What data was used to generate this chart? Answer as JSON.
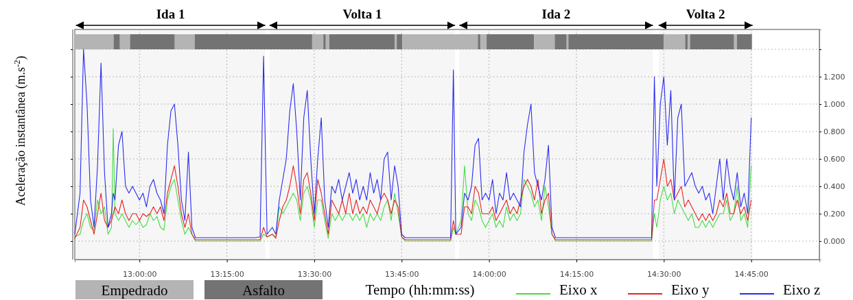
{
  "chart_data": {
    "type": "line",
    "xlabel": "Tempo (hh:mm:ss)",
    "ylabel": "Aceleração instantânea (m.s$^{-2}$)",
    "annotations": [
      "Empedrado",
      "Asfalto"
    ],
    "xlim": [
      12.815,
      14.945
    ],
    "ylim": [
      -0.135,
      1.545
    ],
    "xticks": [
      {
        "value": 13,
        "label": "13:00:00"
      },
      {
        "value": 13.25,
        "label": "13:15:00"
      },
      {
        "value": 13.5,
        "label": "13:30:00"
      },
      {
        "value": 13.75,
        "label": "13:45:00"
      },
      {
        "value": 14,
        "label": "14:00:00"
      },
      {
        "value": 14.25,
        "label": "14:15:00"
      },
      {
        "value": 14.5,
        "label": "14:30:00"
      },
      {
        "value": 14.75,
        "label": "14:45:00"
      }
    ],
    "yticks": [
      {
        "value": 0,
        "label": "0.000"
      },
      {
        "value": 0.2,
        "label": "0.200"
      },
      {
        "value": 0.4,
        "label": "0.400"
      },
      {
        "value": 0.6,
        "label": "0.600"
      },
      {
        "value": 0.8,
        "label": "0.800"
      },
      {
        "value": 1.0,
        "label": "1.000"
      },
      {
        "value": 1.2,
        "label": "1.200"
      },
      {
        "value": 1.4,
        "label": null
      }
    ],
    "grid": true,
    "legend": "bottom",
    "bands": [
      {
        "axis": "x",
        "from": 12.818,
        "to": 13.36,
        "label": "Ida 1"
      },
      {
        "axis": "x",
        "from": 13.372,
        "to": 13.903,
        "label": "Volta 1"
      },
      {
        "axis": "x",
        "from": 13.915,
        "to": 14.469,
        "label": "Ida 2"
      },
      {
        "axis": "x",
        "from": 14.485,
        "to": 14.754,
        "label": "Volta 2"
      },
      {
        "axis": "x",
        "from": 12.815,
        "to": 12.926,
        "color": "#b4b4b4"
      },
      {
        "axis": "x",
        "from": 12.926,
        "to": 12.944,
        "color": "#737373"
      },
      {
        "axis": "x",
        "from": 12.944,
        "to": 12.973,
        "color": "#b4b4b4"
      },
      {
        "axis": "x",
        "from": 12.973,
        "to": 13.101,
        "color": "#737373"
      },
      {
        "axis": "x",
        "from": 13.101,
        "to": 13.158,
        "color": "#b4b4b4"
      },
      {
        "axis": "x",
        "from": 13.158,
        "to": 13.494,
        "color": "#737373"
      },
      {
        "axis": "x",
        "from": 13.494,
        "to": 13.526,
        "color": "#b4b4b4"
      },
      {
        "axis": "x",
        "from": 13.526,
        "to": 13.533,
        "color": "#737373"
      },
      {
        "axis": "x",
        "from": 13.533,
        "to": 13.543,
        "color": "#b4b4b4"
      },
      {
        "axis": "x",
        "from": 13.543,
        "to": 13.73,
        "color": "#737373"
      },
      {
        "axis": "x",
        "from": 13.73,
        "to": 13.736,
        "color": "#b4b4b4"
      },
      {
        "axis": "x",
        "from": 13.736,
        "to": 13.752,
        "color": "#737373"
      },
      {
        "axis": "x",
        "from": 13.752,
        "to": 13.968,
        "color": "#b4b4b4"
      },
      {
        "axis": "x",
        "from": 13.968,
        "to": 13.975,
        "color": "#737373"
      },
      {
        "axis": "x",
        "from": 13.975,
        "to": 13.993,
        "color": "#b4b4b4"
      },
      {
        "axis": "x",
        "from": 13.993,
        "to": 14.129,
        "color": "#737373"
      },
      {
        "axis": "x",
        "from": 14.129,
        "to": 14.188,
        "color": "#b4b4b4"
      },
      {
        "axis": "x",
        "from": 14.188,
        "to": 14.222,
        "color": "#737373"
      },
      {
        "axis": "x",
        "from": 14.222,
        "to": 14.227,
        "color": "#b4b4b4"
      },
      {
        "axis": "x",
        "from": 14.227,
        "to": 14.5,
        "color": "#737373"
      },
      {
        "axis": "x",
        "from": 14.5,
        "to": 14.561,
        "color": "#b4b4b4"
      },
      {
        "axis": "x",
        "from": 14.561,
        "to": 14.568,
        "color": "#737373"
      },
      {
        "axis": "x",
        "from": 14.568,
        "to": 14.575,
        "color": "#b4b4b4"
      },
      {
        "axis": "x",
        "from": 14.575,
        "to": 14.701,
        "color": "#737373"
      },
      {
        "axis": "x",
        "from": 14.701,
        "to": 14.709,
        "color": "#b4b4b4"
      },
      {
        "axis": "x",
        "from": 14.709,
        "to": 14.752,
        "color": "#737373"
      }
    ],
    "x": [
      12.815,
      12.83,
      12.84,
      12.85,
      12.86,
      12.87,
      12.88,
      12.89,
      12.9,
      12.91,
      12.92,
      12.925,
      12.93,
      12.94,
      12.95,
      12.96,
      12.97,
      12.98,
      12.99,
      13.0,
      13.01,
      13.02,
      13.03,
      13.04,
      13.05,
      13.06,
      13.07,
      13.08,
      13.09,
      13.1,
      13.11,
      13.12,
      13.13,
      13.14,
      13.15,
      13.16,
      13.2,
      13.25,
      13.3,
      13.33,
      13.345,
      13.355,
      13.365,
      13.38,
      13.39,
      13.4,
      13.41,
      13.42,
      13.43,
      13.44,
      13.45,
      13.46,
      13.47,
      13.48,
      13.49,
      13.5,
      13.51,
      13.52,
      13.53,
      13.54,
      13.55,
      13.56,
      13.57,
      13.58,
      13.59,
      13.6,
      13.61,
      13.62,
      13.63,
      13.64,
      13.65,
      13.66,
      13.67,
      13.68,
      13.69,
      13.7,
      13.71,
      13.72,
      13.73,
      13.74,
      13.75,
      13.76,
      13.8,
      13.85,
      13.89,
      13.898,
      13.905,
      13.92,
      13.93,
      13.94,
      13.95,
      13.96,
      13.97,
      13.98,
      13.99,
      14.0,
      14.01,
      14.02,
      14.03,
      14.04,
      14.05,
      14.06,
      14.07,
      14.08,
      14.09,
      14.1,
      14.11,
      14.12,
      14.13,
      14.14,
      14.15,
      14.16,
      14.17,
      14.18,
      14.19,
      14.25,
      14.35,
      14.45,
      14.465,
      14.473,
      14.48,
      14.49,
      14.5,
      14.51,
      14.52,
      14.53,
      14.54,
      14.55,
      14.56,
      14.57,
      14.58,
      14.59,
      14.6,
      14.61,
      14.62,
      14.63,
      14.64,
      14.65,
      14.66,
      14.67,
      14.68,
      14.69,
      14.7,
      14.71,
      14.72,
      14.73,
      14.74,
      14.75
    ],
    "series": [
      {
        "name": "Eixo x",
        "color": "#44dd44",
        "values": [
          0.03,
          0.05,
          0.15,
          0.2,
          0.1,
          0.08,
          0.3,
          0.2,
          0.25,
          0.05,
          0.1,
          0.82,
          0.2,
          0.15,
          0.2,
          0.15,
          0.1,
          0.15,
          0.12,
          0.15,
          0.1,
          0.12,
          0.2,
          0.15,
          0.18,
          0.1,
          0.08,
          0.3,
          0.4,
          0.45,
          0.3,
          0.15,
          0.05,
          0.1,
          0.05,
          0,
          0,
          0,
          0,
          0,
          0,
          0.05,
          0.03,
          0.05,
          0.03,
          0.25,
          0.2,
          0.25,
          0.3,
          0.35,
          0.3,
          0.15,
          0.35,
          0.4,
          0.3,
          0.1,
          0.3,
          0.3,
          0.15,
          0.02,
          0.2,
          0.15,
          0.2,
          0.15,
          0.2,
          0.2,
          0.15,
          0.2,
          0.15,
          0.2,
          0.1,
          0.2,
          0.15,
          0.2,
          0.15,
          0.25,
          0.3,
          0.15,
          0.35,
          0.2,
          0.03,
          0,
          0,
          0,
          0,
          0.1,
          0.05,
          0.15,
          0.55,
          0.2,
          0.15,
          0.3,
          0.25,
          0.15,
          0.1,
          0.15,
          0.2,
          0.1,
          0.15,
          0.1,
          0.25,
          0.15,
          0.2,
          0.15,
          0.2,
          0.45,
          0.4,
          0.35,
          0.25,
          0.3,
          0.15,
          0.4,
          0.25,
          0.05,
          0,
          0,
          0,
          0,
          0,
          0.2,
          0.1,
          0.3,
          0.4,
          0.3,
          0.35,
          0.2,
          0.3,
          0.25,
          0.2,
          0.15,
          0.2,
          0.1,
          0.1,
          0.15,
          0.1,
          0.15,
          0.1,
          0.15,
          0.2,
          0.2,
          0.3,
          0.15,
          0.2,
          0.4,
          0.15,
          0.2,
          0.1,
          0.55
        ]
      },
      {
        "name": "Eixo y",
        "color": "#e82020",
        "values": [
          0.02,
          0.1,
          0.3,
          0.25,
          0.15,
          0.05,
          0.2,
          0.35,
          0.15,
          0.1,
          0.15,
          0.2,
          0.25,
          0.2,
          0.3,
          0.2,
          0.15,
          0.2,
          0.2,
          0.15,
          0.2,
          0.18,
          0.2,
          0.25,
          0.2,
          0.25,
          0.15,
          0.35,
          0.45,
          0.55,
          0.4,
          0.2,
          0.1,
          0.2,
          0.05,
          0.01,
          0.01,
          0.01,
          0.01,
          0.01,
          0.01,
          0.1,
          0.03,
          0.05,
          0.02,
          0.15,
          0.25,
          0.3,
          0.4,
          0.55,
          0.4,
          0.2,
          0.45,
          0.5,
          0.35,
          0.15,
          0.45,
          0.35,
          0.2,
          0.05,
          0.3,
          0.25,
          0.2,
          0.3,
          0.2,
          0.35,
          0.2,
          0.3,
          0.2,
          0.25,
          0.2,
          0.3,
          0.25,
          0.2,
          0.3,
          0.35,
          0.3,
          0.2,
          0.3,
          0.25,
          0.03,
          0.01,
          0.01,
          0.01,
          0.01,
          0.15,
          0.05,
          0.05,
          0.25,
          0.25,
          0.2,
          0.4,
          0.35,
          0.2,
          0.2,
          0.2,
          0.25,
          0.15,
          0.2,
          0.25,
          0.3,
          0.2,
          0.25,
          0.2,
          0.3,
          0.4,
          0.45,
          0.4,
          0.3,
          0.45,
          0.2,
          0.3,
          0.35,
          0.05,
          0.01,
          0.01,
          0.01,
          0.01,
          0.01,
          0.3,
          0.3,
          0.45,
          0.6,
          0.4,
          0.45,
          0.3,
          0.35,
          0.4,
          0.25,
          0.3,
          0.25,
          0.2,
          0.15,
          0.2,
          0.15,
          0.2,
          0.15,
          0.2,
          0.3,
          0.25,
          0.35,
          0.2,
          0.2,
          0.3,
          0.2,
          0.25,
          0.15,
          0.3
        ]
      },
      {
        "name": "Eixo z",
        "color": "#2a2af0",
        "values": [
          0.05,
          0.35,
          1.4,
          1.0,
          0.3,
          0.1,
          0.55,
          1.3,
          0.5,
          0.1,
          0.2,
          0.35,
          0.3,
          0.7,
          0.8,
          0.4,
          0.35,
          0.4,
          0.35,
          0.3,
          0.35,
          0.25,
          0.4,
          0.45,
          0.35,
          0.3,
          0.2,
          0.7,
          0.95,
          1.0,
          0.7,
          0.3,
          0.15,
          0.65,
          0.1,
          0.025,
          0.025,
          0.025,
          0.025,
          0.025,
          0.03,
          1.35,
          0.05,
          0.1,
          0.05,
          0.3,
          0.45,
          0.6,
          0.95,
          1.15,
          0.8,
          0.3,
          0.9,
          1.1,
          0.6,
          0.2,
          0.6,
          0.9,
          0.3,
          0.1,
          0.4,
          0.35,
          0.45,
          0.3,
          0.4,
          0.5,
          0.35,
          0.45,
          0.3,
          0.4,
          0.3,
          0.5,
          0.35,
          0.45,
          0.3,
          0.6,
          0.65,
          0.3,
          0.55,
          0.4,
          0.05,
          0.025,
          0.025,
          0.025,
          0.025,
          1.25,
          0.05,
          0.1,
          0.35,
          0.3,
          0.4,
          0.7,
          0.75,
          0.3,
          0.35,
          0.3,
          0.45,
          0.2,
          0.35,
          0.3,
          0.5,
          0.3,
          0.35,
          0.3,
          0.25,
          0.65,
          0.85,
          1.0,
          0.5,
          0.4,
          0.3,
          0.45,
          0.7,
          0.1,
          0.025,
          0.025,
          0.025,
          0.025,
          0.025,
          1.2,
          0.4,
          1.0,
          1.2,
          0.7,
          1.1,
          0.3,
          0.9,
          1.0,
          0.4,
          0.45,
          0.5,
          0.4,
          0.35,
          0.4,
          0.3,
          0.35,
          0.2,
          0.4,
          0.6,
          0.3,
          0.6,
          0.4,
          0.3,
          0.5,
          0.25,
          0.35,
          0.2,
          0.9
        ]
      }
    ]
  }
}
